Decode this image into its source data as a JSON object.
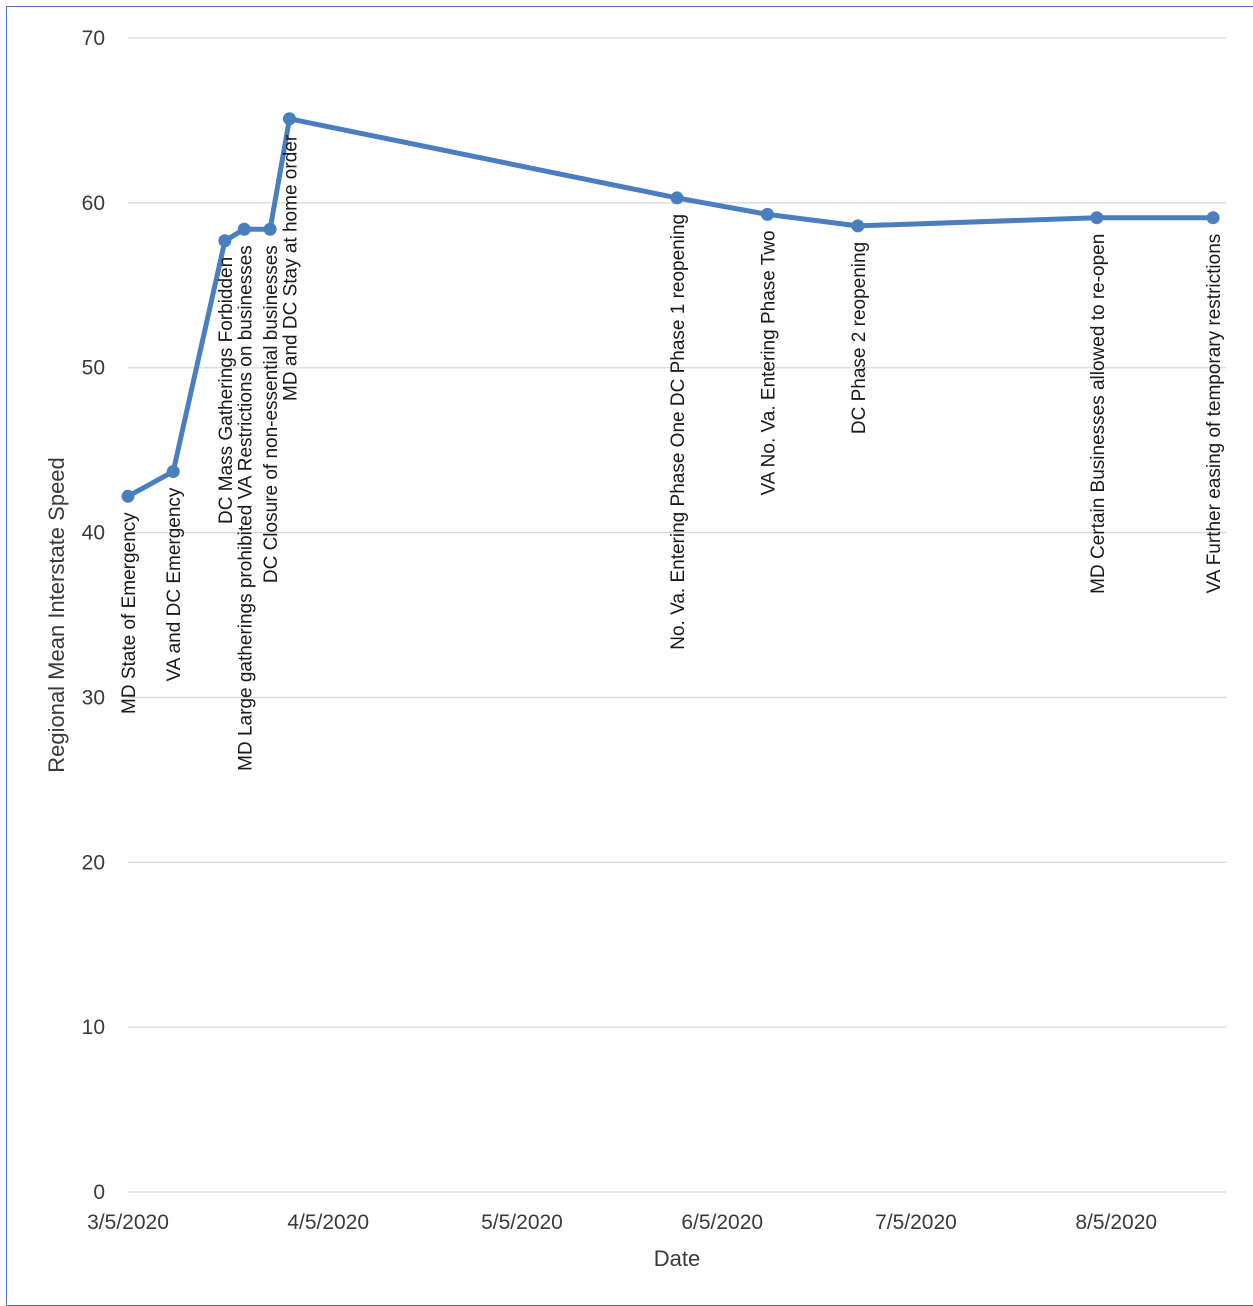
{
  "chart_data": {
    "type": "line",
    "title": "",
    "xlabel": "Date",
    "ylabel": "Regional Mean Interstate Speed",
    "ylim": [
      0,
      70
    ],
    "yticks": [
      0,
      10,
      20,
      30,
      40,
      50,
      60,
      70
    ],
    "xlim": [
      "3/5/2020",
      "8/22/2020"
    ],
    "xticks": [
      "3/5/2020",
      "4/5/2020",
      "5/5/2020",
      "6/5/2020",
      "7/5/2020",
      "8/5/2020"
    ],
    "grid": true,
    "legend": "none",
    "series_color": "#4a7ebf",
    "points": [
      {
        "x": "3/5/2020",
        "y": 42.2,
        "label": "MD State of Emergency"
      },
      {
        "x": "3/12/2020",
        "y": 43.7,
        "label": "VA and DC Emergency"
      },
      {
        "x": "3/20/2020",
        "y": 57.7,
        "label": "DC Mass Gatherings Forbidden"
      },
      {
        "x": "3/23/2020",
        "y": 58.4,
        "label": "MD Large gatherings prohibited VA Restrictions on businesses"
      },
      {
        "x": "3/27/2020",
        "y": 58.4,
        "label": "DC Closure of non-essential businesses"
      },
      {
        "x": "3/30/2020",
        "y": 65.1,
        "label": "MD and DC Stay at home order"
      },
      {
        "x": "5/29/2020",
        "y": 60.3,
        "label": "No. Va. Entering Phase One DC Phase 1 reopening"
      },
      {
        "x": "6/12/2020",
        "y": 59.3,
        "label": "VA No. Va. Entering Phase Two"
      },
      {
        "x": "6/26/2020",
        "y": 58.6,
        "label": "DC Phase 2 reopening"
      },
      {
        "x": "8/2/2020",
        "y": 59.1,
        "label": "MD Certain Businesses allowed to re-open"
      },
      {
        "x": "8/20/2020",
        "y": 59.1,
        "label": "VA Further easing of temporary restrictions"
      }
    ]
  }
}
